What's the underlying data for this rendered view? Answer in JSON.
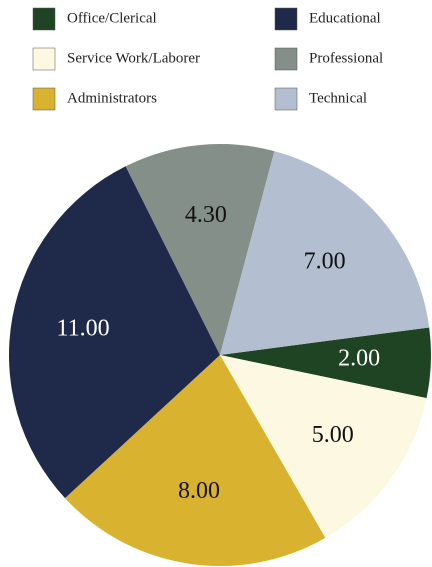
{
  "chart_data": {
    "type": "pie",
    "categories": [
      "Office/Clerical",
      "Service Work/Laborer",
      "Administrators",
      "Educational",
      "Professional",
      "Technical"
    ],
    "values": [
      2,
      5,
      8,
      11,
      4.3,
      7
    ],
    "value_labels": [
      "2.00",
      "5.00",
      "8.00",
      "11.00",
      "4.30",
      "7.00"
    ],
    "colors": [
      "#1f4423",
      "#fdf8e1",
      "#d9b22f",
      "#1f2a4a",
      "#838f88",
      "#b3bfd1"
    ]
  }
}
